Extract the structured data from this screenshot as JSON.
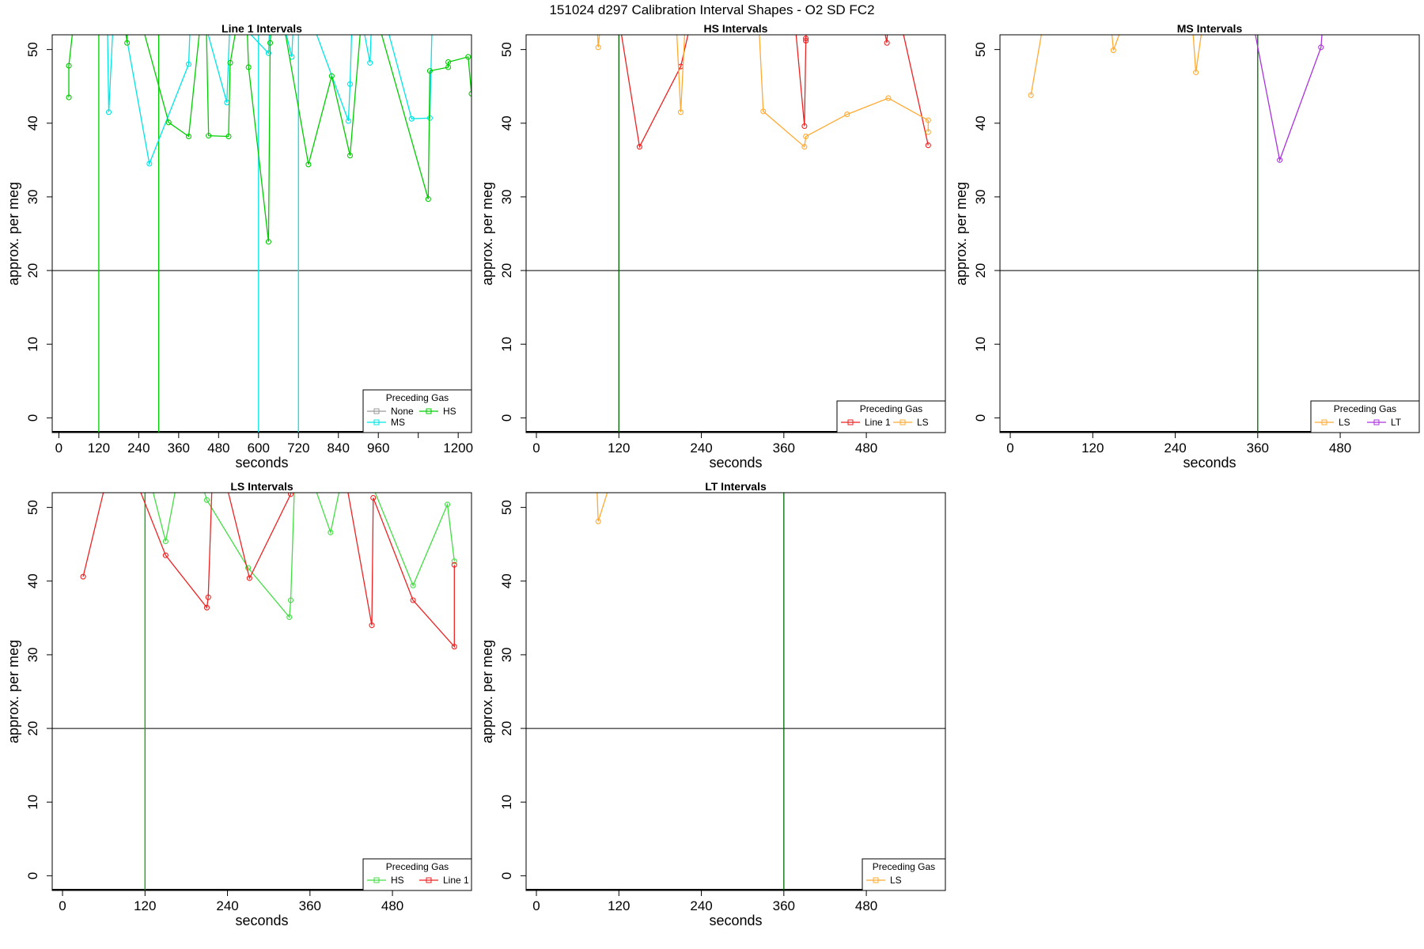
{
  "figure": {
    "title": "151024   d297   Calibration Interval Shapes - O2 SD FC2",
    "ref_line_color": "#000000",
    "axis_color": "#000000"
  },
  "chart_data": [
    {
      "type": "line",
      "title": "Line 1 Intervals",
      "xlabel": "seconds",
      "ylabel": "approx. per meg",
      "xlim": [
        -20,
        1240
      ],
      "ylim": [
        -2,
        52
      ],
      "xticks": [
        0,
        120,
        240,
        360,
        480,
        600,
        720,
        840,
        960,
        1080,
        1200
      ],
      "xtick_labels": [
        "0",
        "120",
        "240",
        "360",
        "480",
        "600",
        "720",
        "840",
        "960",
        "",
        "1200"
      ],
      "yticks": [
        0,
        10,
        20,
        30,
        40,
        50
      ],
      "hline": 20,
      "vlines": [
        {
          "x": 120,
          "color": "#00cc00"
        },
        {
          "x": 300,
          "color": "#00cc00"
        },
        {
          "x": 600,
          "color": "#00e5e5"
        },
        {
          "x": 720,
          "color": "#00e5e5"
        }
      ],
      "legend": {
        "title": "Preceding Gas",
        "position": "bottom-right",
        "entries": [
          {
            "label": "None",
            "color": "#999999"
          },
          {
            "label": "HS",
            "color": "#00cc00"
          },
          {
            "label": "MS",
            "color": "#00e5e5"
          }
        ]
      },
      "series": [
        {
          "name": "MS",
          "color": "#00e5e5",
          "points": [
            [
              140,
              70
            ],
            [
              150,
              41.5
            ],
            [
              170,
              60
            ],
            [
              272,
              34.5
            ],
            [
              390,
              48
            ],
            [
              400,
              60
            ],
            [
              505,
              42.8
            ],
            [
              515,
              55
            ],
            [
              630,
              49.5
            ],
            [
              640,
              60
            ],
            [
              700,
              49
            ],
            [
              710,
              60
            ],
            [
              870,
              40.3
            ],
            [
              875,
              45.3
            ],
            [
              885,
              60
            ],
            [
              935,
              48.2
            ],
            [
              945,
              60
            ],
            [
              1060,
              40.6
            ],
            [
              1115,
              40.7
            ],
            [
              1125,
              60
            ]
          ]
        },
        {
          "name": "HS",
          "color": "#00cc00",
          "points": [
            [
              30,
              43.5
            ],
            [
              30,
              47.8
            ],
            [
              60,
              60
            ],
            [
              180,
              60
            ],
            [
              205,
              50.9
            ],
            [
              210,
              60
            ],
            [
              330,
              40.1
            ],
            [
              390,
              38.2
            ],
            [
              440,
              60
            ],
            [
              450,
              38.3
            ],
            [
              510,
              38.2
            ],
            [
              515,
              48.2
            ],
            [
              560,
              60
            ],
            [
              570,
              47.6
            ],
            [
              630,
              23.9
            ],
            [
              635,
              50.9
            ],
            [
              650,
              60
            ],
            [
              750,
              34.4
            ],
            [
              820,
              46.4
            ],
            [
              875,
              35.6
            ],
            [
              920,
              60
            ],
            [
              1110,
              29.7
            ],
            [
              1115,
              47.1
            ],
            [
              1170,
              47.6
            ],
            [
              1170,
              48.3
            ],
            [
              1230,
              49
            ],
            [
              1240,
              44
            ]
          ]
        }
      ]
    },
    {
      "type": "line",
      "title": "HS Intervals",
      "xlabel": "seconds",
      "ylabel": "approx. per meg",
      "xlim": [
        -15,
        595
      ],
      "ylim": [
        -2,
        52
      ],
      "xticks": [
        0,
        120,
        240,
        360,
        480
      ],
      "xtick_labels": [
        "0",
        "120",
        "240",
        "360",
        "480"
      ],
      "yticks": [
        0,
        10,
        20,
        30,
        40,
        50
      ],
      "hline": 20,
      "vlines": [
        {
          "x": 120,
          "color": "#006600"
        }
      ],
      "legend": {
        "title": "Preceding Gas",
        "position": "bottom-right",
        "entries": [
          {
            "label": "Line 1",
            "color": "#ee2222"
          },
          {
            "label": "LS",
            "color": "#ffaa33"
          }
        ]
      },
      "series": [
        {
          "name": "Line 1",
          "color": "#ee2222",
          "points": [
            [
              110,
              60
            ],
            [
              150,
              36.8
            ],
            [
              210,
              47.7
            ],
            [
              240,
              60
            ],
            [
              370,
              60
            ],
            [
              390,
              39.6
            ],
            [
              392,
              51.2
            ],
            [
              392,
              51.5
            ],
            [
              400,
              60
            ],
            [
              490,
              60
            ],
            [
              510,
              50.9
            ],
            [
              515,
              60
            ],
            [
              570,
              37
            ]
          ]
        },
        {
          "name": "LS",
          "color": "#ffaa33",
          "points": [
            [
              85,
              60
            ],
            [
              90,
              50.3
            ],
            [
              100,
              60
            ],
            [
              200,
              60
            ],
            [
              210,
              41.5
            ],
            [
              220,
              60
            ],
            [
              320,
              60
            ],
            [
              330,
              41.6
            ],
            [
              390,
              36.8
            ],
            [
              392,
              38.2
            ],
            [
              452,
              41.2
            ],
            [
              512,
              43.4
            ],
            [
              570,
              40.4
            ],
            [
              570,
              38.8
            ]
          ]
        }
      ]
    },
    {
      "type": "line",
      "title": "MS Intervals",
      "xlabel": "seconds",
      "ylabel": "approx. per meg",
      "xlim": [
        -15,
        595
      ],
      "ylim": [
        -2,
        52
      ],
      "xticks": [
        0,
        120,
        240,
        360,
        480
      ],
      "xtick_labels": [
        "0",
        "120",
        "240",
        "360",
        "480"
      ],
      "yticks": [
        0,
        10,
        20,
        30,
        40,
        50
      ],
      "hline": 20,
      "vlines": [
        {
          "x": 360,
          "color": "#006600"
        }
      ],
      "legend": {
        "title": "Preceding Gas",
        "position": "bottom-right",
        "entries": [
          {
            "label": "LS",
            "color": "#ffaa33"
          },
          {
            "label": "LT",
            "color": "#aa33dd"
          }
        ]
      },
      "series": [
        {
          "name": "LS",
          "color": "#ffaa33",
          "points": [
            [
              30,
              43.8
            ],
            [
              60,
              60
            ],
            [
              140,
              60
            ],
            [
              150,
              49.9
            ],
            [
              190,
              60
            ],
            [
              260,
              60
            ],
            [
              270,
              46.9
            ],
            [
              290,
              60
            ]
          ]
        },
        {
          "name": "LT",
          "color": "#aa33dd",
          "points": [
            [
              340,
              60
            ],
            [
              392,
              35
            ],
            [
              452,
              50.3
            ],
            [
              460,
              60
            ]
          ]
        }
      ]
    },
    {
      "type": "line",
      "title": "LS Intervals",
      "xlabel": "seconds",
      "ylabel": "approx. per meg",
      "xlim": [
        -15,
        595
      ],
      "ylim": [
        -2,
        52
      ],
      "xticks": [
        0,
        120,
        240,
        360,
        480
      ],
      "xtick_labels": [
        "0",
        "120",
        "240",
        "360",
        "480"
      ],
      "yticks": [
        0,
        10,
        20,
        30,
        40,
        50
      ],
      "hline": 20,
      "vlines": [
        {
          "x": 120,
          "color": "#00aa00"
        }
      ],
      "legend": {
        "title": "Preceding Gas",
        "position": "bottom-right",
        "entries": [
          {
            "label": "HS",
            "color": "#44dd44"
          },
          {
            "label": "Line 1",
            "color": "#ee2222"
          }
        ]
      },
      "series": [
        {
          "name": "HS",
          "color": "#44dd44",
          "points": [
            [
              110,
              60
            ],
            [
              150,
              45.4
            ],
            [
              180,
              60
            ],
            [
              210,
              51
            ],
            [
              270,
              41.8
            ],
            [
              330,
              35.1
            ],
            [
              332,
              37.4
            ],
            [
              340,
              60
            ],
            [
              390,
              46.6
            ],
            [
              420,
              60
            ],
            [
              510,
              39.4
            ],
            [
              560,
              50.4
            ],
            [
              570,
              42.7
            ]
          ]
        },
        {
          "name": "Line 1",
          "color": "#ee2222",
          "points": [
            [
              30,
              40.6
            ],
            [
              80,
              60
            ],
            [
              150,
              43.5
            ],
            [
              210,
              36.4
            ],
            [
              212,
              37.8
            ],
            [
              220,
              60
            ],
            [
              272,
              40.4
            ],
            [
              332,
              51.8
            ],
            [
              340,
              60
            ],
            [
              400,
              60
            ],
            [
              450,
              34
            ],
            [
              452,
              51.3
            ],
            [
              510,
              37.4
            ],
            [
              570,
              31.1
            ],
            [
              570,
              42.2
            ]
          ]
        }
      ]
    },
    {
      "type": "line",
      "title": "LT Intervals",
      "xlabel": "seconds",
      "ylabel": "approx. per meg",
      "xlim": [
        -15,
        595
      ],
      "ylim": [
        -2,
        52
      ],
      "xticks": [
        0,
        120,
        240,
        360,
        480
      ],
      "xtick_labels": [
        "0",
        "120",
        "240",
        "360",
        "480"
      ],
      "yticks": [
        0,
        10,
        20,
        30,
        40,
        50
      ],
      "hline": 20,
      "vlines": [
        {
          "x": 360,
          "color": "#006600"
        }
      ],
      "legend": {
        "title": "Preceding Gas",
        "position": "bottom-right",
        "entries": [
          {
            "label": "LS",
            "color": "#ffaa33"
          }
        ]
      },
      "series": [
        {
          "name": "LS",
          "color": "#ffaa33",
          "points": [
            [
              85,
              60
            ],
            [
              90,
              48.1
            ],
            [
              130,
              60
            ]
          ]
        }
      ]
    }
  ]
}
